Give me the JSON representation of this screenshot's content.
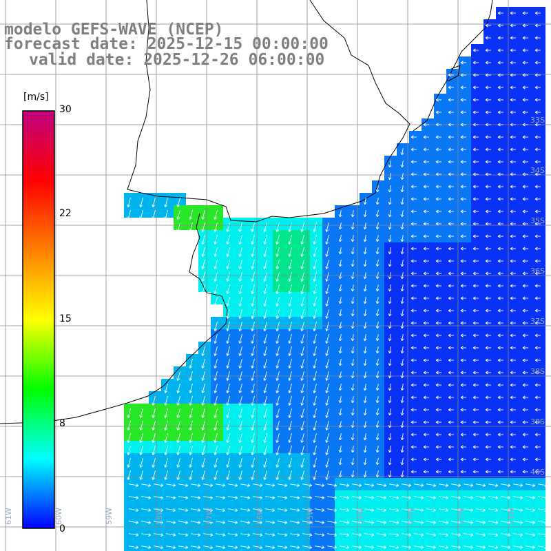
{
  "header": {
    "model": "modelo GEFS-WAVE (NCEP)",
    "forecast": "forecast date: 2025-12-15 00:00:00",
    "valid": "valid date: 2025-12-26 06:00:00"
  },
  "colorbar": {
    "unit": "[m/s]",
    "ticks": [
      "30",
      "22",
      "15",
      "8",
      "0"
    ],
    "min": 0,
    "max": 30,
    "colors": [
      "#0000ff",
      "#00ffff",
      "#00ff00",
      "#ffff00",
      "#ff8000",
      "#ff0000",
      "#c00080"
    ]
  },
  "map": {
    "lat_labels": [
      "33S",
      "34S",
      "35S",
      "36S",
      "37S",
      "38S",
      "39S",
      "40S"
    ],
    "lon_labels": [
      "61W",
      "60W",
      "59W",
      "58W",
      "57W",
      "56W",
      "55W",
      "54W",
      "53W",
      "52W",
      "51W"
    ],
    "colors": {
      "land": "#ffffff",
      "deep": "#0a32f5",
      "mid": "#0a78f5",
      "light": "#00b4f0",
      "cyan": "#00f0f0",
      "green": "#00e68c",
      "brightgreen": "#28e628"
    }
  }
}
